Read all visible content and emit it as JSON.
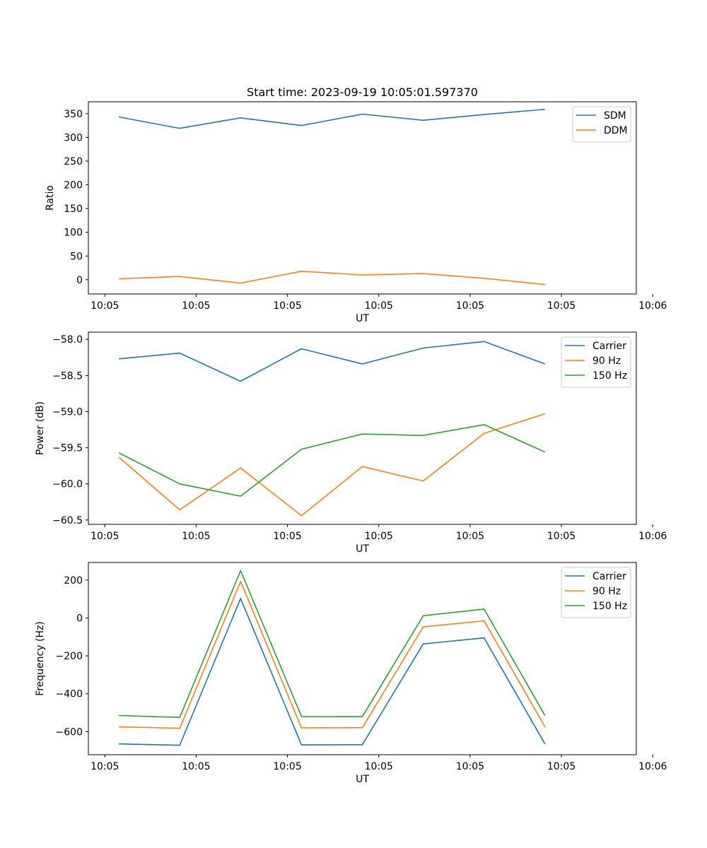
{
  "chart_data": [
    {
      "type": "line",
      "title": "Start time: 2023-09-19 10:05:01.597370",
      "xlabel": "UT",
      "ylabel": "Ratio",
      "xlim": [
        -0.5,
        8.5
      ],
      "x_ticks": [
        -0.23,
        1.27,
        2.77,
        4.27,
        5.77,
        7.27,
        8.77
      ],
      "x_tick_labels": [
        "10:05",
        "10:05",
        "10:05",
        "10:05",
        "10:05",
        "10:05",
        "10:06"
      ],
      "ylim": [
        -30,
        375
      ],
      "y_ticks": [
        0,
        50,
        100,
        150,
        200,
        250,
        300,
        350
      ],
      "y_tick_labels": [
        "0",
        "50",
        "100",
        "150",
        "200",
        "250",
        "300",
        "350"
      ],
      "legend_position": "top-right",
      "x": [
        0,
        1,
        2,
        3,
        4,
        5,
        6,
        7
      ],
      "series": [
        {
          "name": "SDM",
          "color": "#1f77b4",
          "values": [
            343,
            319,
            341,
            325,
            349,
            336,
            348,
            359
          ]
        },
        {
          "name": "DDM",
          "color": "#ff7f0e",
          "values": [
            2,
            7,
            -7,
            18,
            10,
            13,
            3,
            -10
          ]
        }
      ]
    },
    {
      "type": "line",
      "title": "",
      "xlabel": "UT",
      "ylabel": "Power (dB)",
      "xlim": [
        -0.5,
        8.5
      ],
      "x_ticks": [
        -0.23,
        1.27,
        2.77,
        4.27,
        5.77,
        7.27,
        8.77
      ],
      "x_tick_labels": [
        "10:05",
        "10:05",
        "10:05",
        "10:05",
        "10:05",
        "10:05",
        "10:06"
      ],
      "ylim": [
        -60.56,
        -57.9
      ],
      "y_ticks": [
        -60.5,
        -60.0,
        -59.5,
        -59.0,
        -58.5,
        -58.0
      ],
      "y_tick_labels": [
        "−60.5",
        "−60.0",
        "−59.5",
        "−59.0",
        "−58.5",
        "−58.0"
      ],
      "legend_position": "top-right",
      "x": [
        0,
        1,
        2,
        3,
        4,
        5,
        6,
        7
      ],
      "series": [
        {
          "name": "Carrier",
          "color": "#1f77b4",
          "values": [
            -58.27,
            -58.19,
            -58.58,
            -58.13,
            -58.34,
            -58.12,
            -58.03,
            -58.34
          ]
        },
        {
          "name": "90 Hz",
          "color": "#ff7f0e",
          "values": [
            -59.63,
            -60.36,
            -59.78,
            -60.44,
            -59.76,
            -59.96,
            -59.3,
            -59.03
          ]
        },
        {
          "name": "150 Hz",
          "color": "#2ca02c",
          "values": [
            -59.57,
            -60.0,
            -60.17,
            -59.52,
            -59.31,
            -59.33,
            -59.18,
            -59.56
          ]
        }
      ]
    },
    {
      "type": "line",
      "title": "",
      "xlabel": "UT",
      "ylabel": "Frequency (Hz)",
      "xlim": [
        -0.5,
        8.5
      ],
      "x_ticks": [
        -0.23,
        1.27,
        2.77,
        4.27,
        5.77,
        7.27,
        8.77
      ],
      "x_tick_labels": [
        "10:05",
        "10:05",
        "10:05",
        "10:05",
        "10:05",
        "10:05",
        "10:06"
      ],
      "ylim": [
        -722,
        293
      ],
      "y_ticks": [
        -600,
        -400,
        -200,
        0,
        200
      ],
      "y_tick_labels": [
        "−600",
        "−400",
        "−200",
        "0",
        "200"
      ],
      "legend_position": "top-right",
      "x": [
        0,
        1,
        2,
        3,
        4,
        5,
        6,
        7
      ],
      "series": [
        {
          "name": "Carrier",
          "color": "#1f77b4",
          "values": [
            -665,
            -672,
            103,
            -670,
            -669,
            -137,
            -105,
            -665
          ]
        },
        {
          "name": "90 Hz",
          "color": "#ff7f0e",
          "values": [
            -575,
            -582,
            193,
            -580,
            -579,
            -47,
            -15,
            -575
          ]
        },
        {
          "name": "150 Hz",
          "color": "#2ca02c",
          "values": [
            -515,
            -525,
            250,
            -520,
            -521,
            12,
            47,
            -515
          ]
        }
      ]
    }
  ]
}
